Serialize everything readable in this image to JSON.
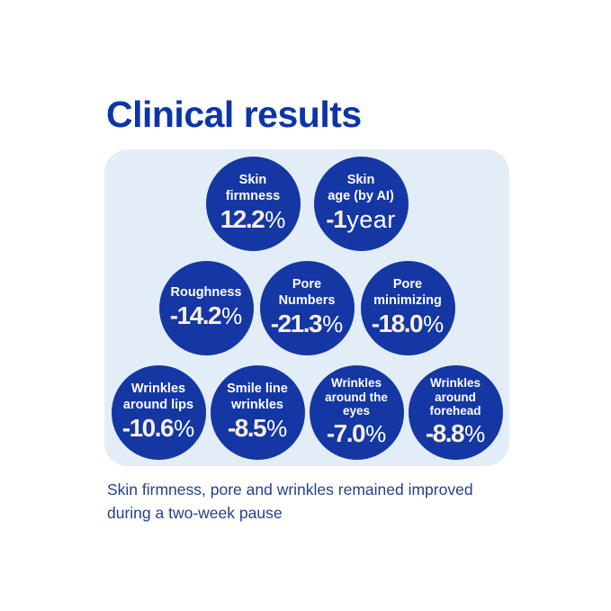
{
  "title": "Clinical results",
  "caption": "Skin firmness, pore and wrinkles remained improved\nduring a two-week pause",
  "colors": {
    "title_text": "#0d35a8",
    "panel_background": "#e3edf8",
    "bubble_fill": "#1437a4",
    "bubble_label_text": "#ffffff",
    "bubble_value_text": "#f8efda",
    "caption_text": "#24418c",
    "page_background": "#ffffff"
  },
  "chart_data": {
    "type": "bar",
    "variant": "bubble-infographic",
    "title": "Clinical results",
    "caption": "Skin firmness, pore and wrinkles remained improved during a two-week pause",
    "legend_position": "none",
    "categories": [
      "Skin firmness",
      "Skin age (by AI)",
      "Roughness",
      "Pore Numbers",
      "Pore minimizing",
      "Wrinkles around lips",
      "Smile line wrinkles",
      "Wrinkles around the eyes",
      "Wrinkles around forehead"
    ],
    "values": [
      12.2,
      -1,
      -14.2,
      -21.3,
      -18.0,
      -10.6,
      -8.5,
      -7.0,
      -8.8
    ],
    "units": [
      "%",
      "year",
      "%",
      "%",
      "%",
      "%",
      "%",
      "%",
      "%"
    ],
    "rows": [
      {
        "items": [
          {
            "label": "Skin\nfirmness",
            "value": "12.2",
            "suffix": "%",
            "numeric": 12.2
          },
          {
            "label": "Skin\nage (by AI)",
            "value": "-1",
            "suffix": "year",
            "numeric": -1
          }
        ]
      },
      {
        "items": [
          {
            "label": "Roughness",
            "value": "-14.2",
            "suffix": "%",
            "numeric": -14.2
          },
          {
            "label": "Pore\nNumbers",
            "value": "-21.3",
            "suffix": "%",
            "numeric": -21.3
          },
          {
            "label": "Pore\nminimizing",
            "value": "-18.0",
            "suffix": "%",
            "numeric": -18.0
          }
        ]
      },
      {
        "items": [
          {
            "label": "Wrinkles\naround lips",
            "value": "-10.6",
            "suffix": "%",
            "numeric": -10.6
          },
          {
            "label": "Smile line\nwrinkles",
            "value": "-8.5",
            "suffix": "%",
            "numeric": -8.5
          },
          {
            "label": "Wrinkles\naround the\neyes",
            "value": "-7.0",
            "suffix": "%",
            "numeric": -7.0
          },
          {
            "label": "Wrinkles\naround\nforehead",
            "value": "-8.8",
            "suffix": "%",
            "numeric": -8.8
          }
        ]
      }
    ]
  }
}
